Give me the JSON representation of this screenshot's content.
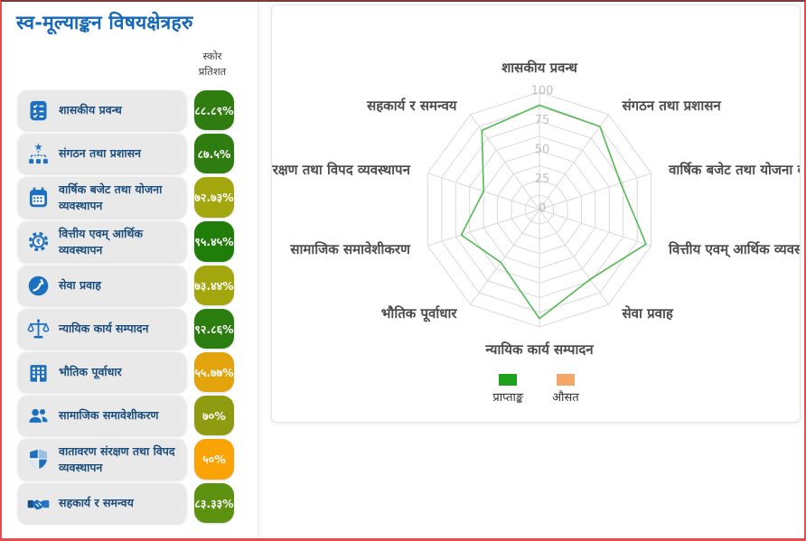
{
  "page": {
    "title": "स्व-मूल्याङ्कन विषयक्षेत्रहरु"
  },
  "sidebar": {
    "score_header": "स्कोर प्रतिशत",
    "items": [
      {
        "label": "शासकीय प्रवन्ध",
        "icon": "checklist-icon",
        "score": "८८.८९%",
        "value": 88.89,
        "color": "#2f7d10"
      },
      {
        "label": "संगठन तथा प्रशासन",
        "icon": "org-hierarchy-icon",
        "score": "८७.५%",
        "value": 87.5,
        "color": "#2f7d10"
      },
      {
        "label": "वार्षिक बजेट तथा योजना व्यवस्थापन",
        "icon": "calendar-icon",
        "score": "७२.७३%",
        "value": 72.73,
        "color": "#a3a60c"
      },
      {
        "label": "वित्तीय एवम् आर्थिक व्यवस्थापन",
        "icon": "finance-gear-icon",
        "score": "९५.४५%",
        "value": 95.45,
        "color": "#217d0a"
      },
      {
        "label": "सेवा प्रवाह",
        "icon": "service-icon",
        "score": "७३.४४%",
        "value": 73.44,
        "color": "#a3a60c"
      },
      {
        "label": "न्यायिक कार्य सम्पादन",
        "icon": "justice-scale-icon",
        "score": "९२.८६%",
        "value": 92.86,
        "color": "#2a7d0e"
      },
      {
        "label": "भौतिक पूर्वाधार",
        "icon": "building-icon",
        "score": "५५.७७%",
        "value": 55.77,
        "color": "#e3a30d"
      },
      {
        "label": "सामाजिक समावेशीकरण",
        "icon": "users-icon",
        "score": "७०%",
        "value": 70,
        "color": "#8f9b10"
      },
      {
        "label": "वातावरण संरक्षण तथा विपद व्यवस्थापन",
        "icon": "shield-icon",
        "score": "५०%",
        "value": 50,
        "color": "#faa307"
      },
      {
        "label": "सहकार्य र समन्वय",
        "icon": "handshake-icon",
        "score": "८३.३३%",
        "value": 83.33,
        "color": "#5d9110"
      }
    ]
  },
  "chart_data": {
    "type": "radar",
    "categories": [
      "शासकीय प्रवन्ध",
      "संगठन तथा प्रशासन",
      "वार्षिक बजेट तथा योजना व्यवस्थापन",
      "वित्तीय एवम् आर्थिक व्यवस्थापन",
      "सेवा प्रवाह",
      "न्यायिक कार्य सम्पादन",
      "भौतिक पूर्वाधार",
      "सामाजिक समावेशीकरण",
      "वातावरण संरक्षण तथा विपद व्यवस्थापन",
      "सहकार्य र समन्वय"
    ],
    "series": [
      {
        "name": "प्राप्ताङ्क",
        "color": "#1ea21e",
        "line_color": "#55b955",
        "values": [
          88.89,
          87.5,
          72.73,
          95.45,
          73.44,
          92.86,
          55.77,
          70,
          50,
          83.33
        ]
      },
      {
        "name": "औसत",
        "color": "#f3a76b",
        "values": []
      }
    ],
    "axis_min": 0,
    "axis_max": 100,
    "ticks": [
      0,
      25,
      50,
      75,
      100
    ],
    "grid_rings": 8,
    "grid": "on",
    "legend_position": "bottom"
  }
}
